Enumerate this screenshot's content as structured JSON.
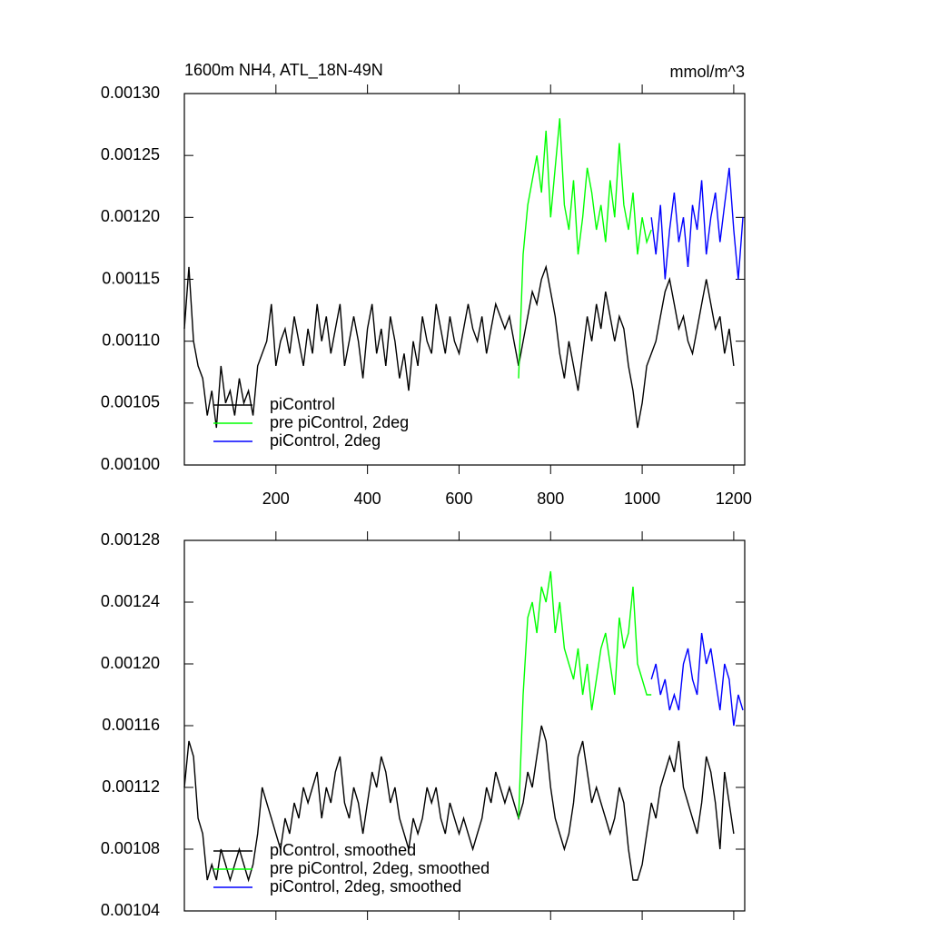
{
  "chart_data": [
    {
      "type": "line",
      "title": "1600m NH4, ATL_18N-49N",
      "units": "mmol/m^3",
      "xlim": [
        0,
        1224
      ],
      "xticks": [
        200,
        400,
        600,
        800,
        1000,
        1200
      ],
      "xtick_labels": true,
      "ylim": [
        0.001,
        0.0013
      ],
      "yticks": [
        {
          "value": 0.001,
          "label": "0.00100"
        },
        {
          "value": 0.00105,
          "label": "0.00105"
        },
        {
          "value": 0.0011,
          "label": "0.00110"
        },
        {
          "value": 0.00115,
          "label": "0.00115"
        },
        {
          "value": 0.0012,
          "label": "0.00120"
        },
        {
          "value": 0.00125,
          "label": "0.00125"
        },
        {
          "value": 0.0013,
          "label": "0.00130"
        }
      ],
      "legend": "lower left",
      "series": [
        {
          "name": "piControl",
          "color": "#000000",
          "x": [
            0,
            10,
            20,
            30,
            40,
            50,
            60,
            70,
            80,
            90,
            100,
            110,
            120,
            130,
            140,
            150,
            160,
            170,
            180,
            190,
            200,
            210,
            220,
            230,
            240,
            250,
            260,
            270,
            280,
            290,
            300,
            310,
            320,
            330,
            340,
            350,
            360,
            370,
            380,
            390,
            400,
            410,
            420,
            430,
            440,
            450,
            460,
            470,
            480,
            490,
            500,
            510,
            520,
            530,
            540,
            550,
            560,
            570,
            580,
            590,
            600,
            610,
            620,
            630,
            640,
            650,
            660,
            670,
            680,
            690,
            700,
            710,
            720,
            730,
            740,
            750,
            760,
            770,
            780,
            790,
            800,
            810,
            820,
            830,
            840,
            850,
            860,
            870,
            880,
            890,
            900,
            910,
            920,
            930,
            940,
            950,
            960,
            970,
            980,
            990,
            1000,
            1010,
            1020,
            1030,
            1040,
            1050,
            1060,
            1070,
            1080,
            1090,
            1100,
            1110,
            1120,
            1130,
            1140,
            1150,
            1160,
            1170,
            1180,
            1190,
            1200
          ],
          "values": [
            0.00111,
            0.00116,
            0.0011,
            0.00108,
            0.00107,
            0.00104,
            0.00106,
            0.00103,
            0.00108,
            0.00105,
            0.00106,
            0.00104,
            0.00107,
            0.00105,
            0.00106,
            0.00104,
            0.00108,
            0.00109,
            0.0011,
            0.00113,
            0.00108,
            0.0011,
            0.00111,
            0.00109,
            0.00112,
            0.0011,
            0.00108,
            0.00111,
            0.00109,
            0.00113,
            0.0011,
            0.00112,
            0.00109,
            0.00111,
            0.00113,
            0.00108,
            0.0011,
            0.00112,
            0.0011,
            0.00107,
            0.00111,
            0.00113,
            0.00109,
            0.00111,
            0.00108,
            0.00112,
            0.0011,
            0.00107,
            0.00109,
            0.00106,
            0.0011,
            0.00108,
            0.00112,
            0.0011,
            0.00109,
            0.00113,
            0.00111,
            0.00109,
            0.00112,
            0.0011,
            0.00109,
            0.00111,
            0.00113,
            0.00111,
            0.0011,
            0.00112,
            0.00109,
            0.00111,
            0.00113,
            0.00112,
            0.00111,
            0.00112,
            0.0011,
            0.00108,
            0.0011,
            0.00112,
            0.00114,
            0.00113,
            0.00115,
            0.00116,
            0.00114,
            0.00112,
            0.00109,
            0.00107,
            0.0011,
            0.00108,
            0.00106,
            0.00109,
            0.00112,
            0.0011,
            0.00113,
            0.00111,
            0.00114,
            0.00112,
            0.0011,
            0.00112,
            0.00111,
            0.00108,
            0.00106,
            0.00103,
            0.00105,
            0.00108,
            0.00109,
            0.0011,
            0.00112,
            0.00114,
            0.00115,
            0.00113,
            0.00111,
            0.00112,
            0.0011,
            0.00109,
            0.00111,
            0.00113,
            0.00115,
            0.00113,
            0.00111,
            0.00112,
            0.00109,
            0.00111,
            0.00108
          ]
        },
        {
          "name": "pre piControl, 2deg",
          "color": "#00ff00",
          "x": [
            730,
            740,
            750,
            760,
            770,
            780,
            790,
            800,
            810,
            820,
            830,
            840,
            850,
            860,
            870,
            880,
            890,
            900,
            910,
            920,
            930,
            940,
            950,
            960,
            970,
            980,
            990,
            1000,
            1010,
            1020
          ],
          "values": [
            0.00107,
            0.00117,
            0.00121,
            0.00123,
            0.00125,
            0.00122,
            0.00127,
            0.0012,
            0.00124,
            0.00128,
            0.00121,
            0.00119,
            0.00123,
            0.00117,
            0.0012,
            0.00124,
            0.00122,
            0.00119,
            0.00121,
            0.00118,
            0.00123,
            0.0012,
            0.00126,
            0.00121,
            0.00119,
            0.00122,
            0.00117,
            0.0012,
            0.00118,
            0.00119
          ]
        },
        {
          "name": "piControl, 2deg",
          "color": "#0000ff",
          "x": [
            1020,
            1030,
            1040,
            1050,
            1060,
            1070,
            1080,
            1090,
            1100,
            1110,
            1120,
            1130,
            1140,
            1150,
            1160,
            1170,
            1180,
            1190,
            1200,
            1210,
            1220
          ],
          "values": [
            0.0012,
            0.00117,
            0.00121,
            0.00115,
            0.00119,
            0.00122,
            0.00118,
            0.0012,
            0.00116,
            0.00121,
            0.00119,
            0.00123,
            0.00117,
            0.0012,
            0.00122,
            0.00118,
            0.00121,
            0.00124,
            0.00119,
            0.00115,
            0.0012
          ]
        }
      ]
    },
    {
      "type": "line",
      "xlim": [
        0,
        1224
      ],
      "xticks": [
        200,
        400,
        600,
        800,
        1000,
        1200
      ],
      "xtick_labels": false,
      "ylim": [
        0.00104,
        0.00128
      ],
      "yticks": [
        {
          "value": 0.00104,
          "label": "0.00104"
        },
        {
          "value": 0.00108,
          "label": "0.00108"
        },
        {
          "value": 0.00112,
          "label": "0.00112"
        },
        {
          "value": 0.00116,
          "label": "0.00116"
        },
        {
          "value": 0.0012,
          "label": "0.00120"
        },
        {
          "value": 0.00124,
          "label": "0.00124"
        },
        {
          "value": 0.00128,
          "label": "0.00128"
        }
      ],
      "legend": "lower left",
      "series": [
        {
          "name": "piControl, smoothed",
          "color": "#000000",
          "x": [
            0,
            10,
            20,
            30,
            40,
            50,
            60,
            70,
            80,
            90,
            100,
            110,
            120,
            130,
            140,
            150,
            160,
            170,
            180,
            190,
            200,
            210,
            220,
            230,
            240,
            250,
            260,
            270,
            280,
            290,
            300,
            310,
            320,
            330,
            340,
            350,
            360,
            370,
            380,
            390,
            400,
            410,
            420,
            430,
            440,
            450,
            460,
            470,
            480,
            490,
            500,
            510,
            520,
            530,
            540,
            550,
            560,
            570,
            580,
            590,
            600,
            610,
            620,
            630,
            640,
            650,
            660,
            670,
            680,
            690,
            700,
            710,
            720,
            730,
            740,
            750,
            760,
            770,
            780,
            790,
            800,
            810,
            820,
            830,
            840,
            850,
            860,
            870,
            880,
            890,
            900,
            910,
            920,
            930,
            940,
            950,
            960,
            970,
            980,
            990,
            1000,
            1010,
            1020,
            1030,
            1040,
            1050,
            1060,
            1070,
            1080,
            1090,
            1100,
            1110,
            1120,
            1130,
            1140,
            1150,
            1160,
            1170,
            1180,
            1190,
            1200
          ],
          "values": [
            0.00112,
            0.00115,
            0.00114,
            0.0011,
            0.00109,
            0.00106,
            0.00107,
            0.00106,
            0.00108,
            0.00107,
            0.00106,
            0.00107,
            0.00108,
            0.00107,
            0.00106,
            0.00107,
            0.00109,
            0.00112,
            0.00111,
            0.0011,
            0.00109,
            0.00108,
            0.0011,
            0.00109,
            0.00111,
            0.0011,
            0.00112,
            0.00111,
            0.00112,
            0.00113,
            0.0011,
            0.00112,
            0.00111,
            0.00113,
            0.00114,
            0.00111,
            0.0011,
            0.00112,
            0.00111,
            0.00109,
            0.00111,
            0.00113,
            0.00112,
            0.00114,
            0.00113,
            0.00111,
            0.00112,
            0.0011,
            0.00109,
            0.00108,
            0.0011,
            0.00109,
            0.0011,
            0.00112,
            0.00111,
            0.00112,
            0.0011,
            0.00109,
            0.00111,
            0.0011,
            0.00109,
            0.0011,
            0.00109,
            0.00108,
            0.00109,
            0.0011,
            0.00112,
            0.00111,
            0.00113,
            0.00112,
            0.00111,
            0.00112,
            0.00111,
            0.0011,
            0.00111,
            0.00113,
            0.00112,
            0.00114,
            0.00116,
            0.00115,
            0.00112,
            0.0011,
            0.00109,
            0.00108,
            0.00109,
            0.00111,
            0.00114,
            0.00115,
            0.00113,
            0.00111,
            0.00112,
            0.00111,
            0.0011,
            0.00109,
            0.0011,
            0.00112,
            0.00111,
            0.00108,
            0.00106,
            0.00106,
            0.00107,
            0.00109,
            0.00111,
            0.0011,
            0.00112,
            0.00113,
            0.00114,
            0.00113,
            0.00115,
            0.00112,
            0.00111,
            0.0011,
            0.00109,
            0.00111,
            0.00114,
            0.00113,
            0.00111,
            0.00108,
            0.00113,
            0.00111,
            0.00109
          ]
        },
        {
          "name": "pre piControl, 2deg, smoothed",
          "color": "#00ff00",
          "x": [
            730,
            740,
            750,
            760,
            770,
            780,
            790,
            800,
            810,
            820,
            830,
            840,
            850,
            860,
            870,
            880,
            890,
            900,
            910,
            920,
            930,
            940,
            950,
            960,
            970,
            980,
            990,
            1000,
            1010,
            1020
          ],
          "values": [
            0.0011,
            0.00118,
            0.00123,
            0.00124,
            0.00122,
            0.00125,
            0.00124,
            0.00126,
            0.00122,
            0.00124,
            0.00121,
            0.0012,
            0.00119,
            0.00121,
            0.00118,
            0.0012,
            0.00117,
            0.00119,
            0.00121,
            0.00122,
            0.0012,
            0.00118,
            0.00123,
            0.00121,
            0.00122,
            0.00125,
            0.0012,
            0.00119,
            0.00118,
            0.00118
          ]
        },
        {
          "name": "piControl, 2deg, smoothed",
          "color": "#0000ff",
          "x": [
            1020,
            1030,
            1040,
            1050,
            1060,
            1070,
            1080,
            1090,
            1100,
            1110,
            1120,
            1130,
            1140,
            1150,
            1160,
            1170,
            1180,
            1190,
            1200,
            1210,
            1220
          ],
          "values": [
            0.00119,
            0.0012,
            0.00118,
            0.00119,
            0.00117,
            0.00118,
            0.00117,
            0.0012,
            0.00121,
            0.00119,
            0.00118,
            0.00122,
            0.0012,
            0.00121,
            0.00119,
            0.00117,
            0.0012,
            0.00119,
            0.00116,
            0.00118,
            0.00117
          ]
        }
      ]
    }
  ]
}
